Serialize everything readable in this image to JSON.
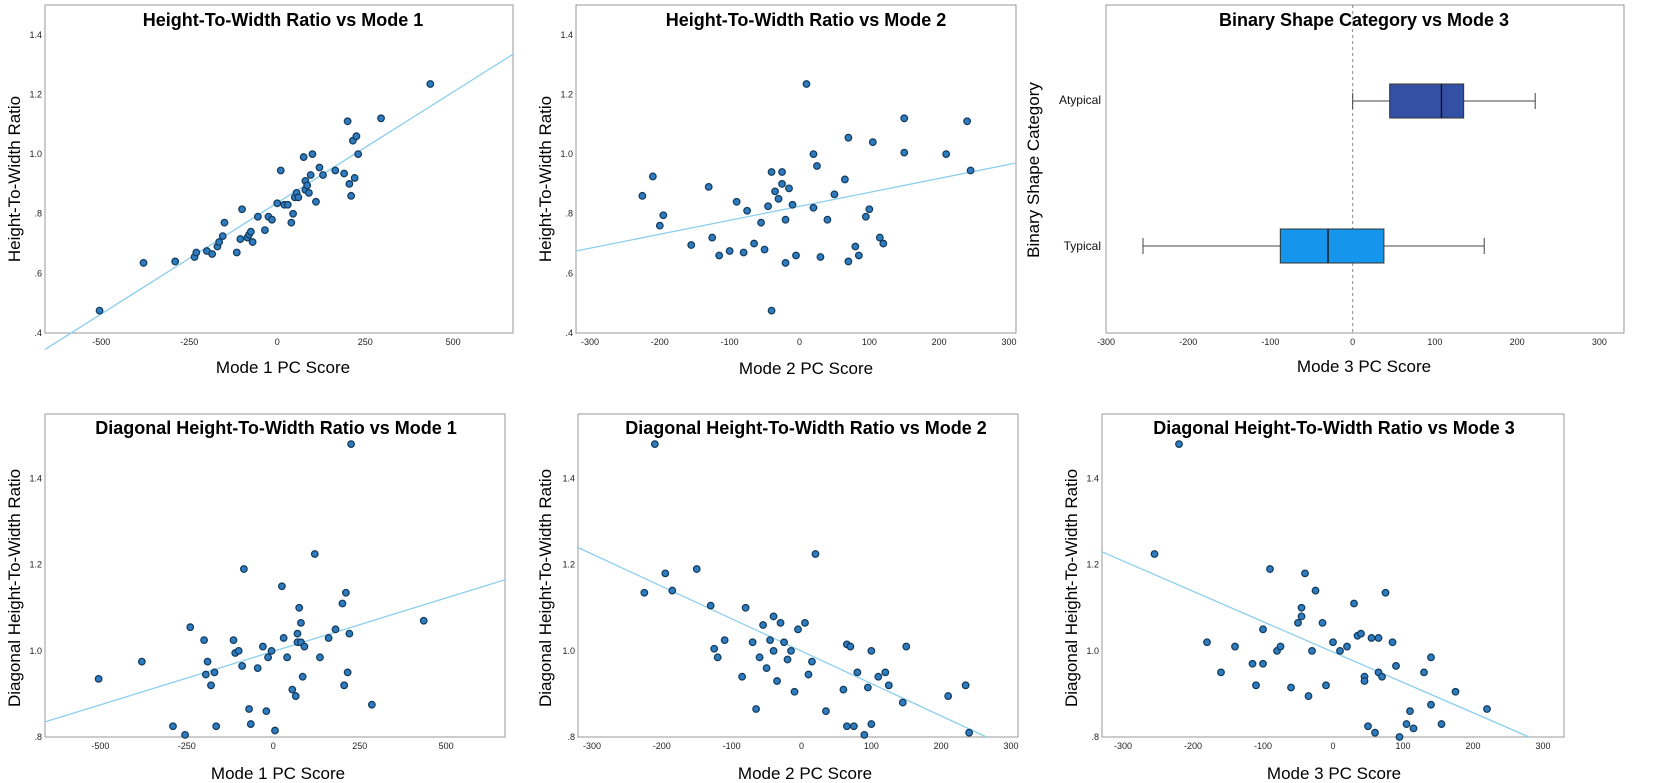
{
  "colors": {
    "point_fill": "#2e7bbf",
    "point_edge": "#123a5a",
    "fit_line": "#8ccfee",
    "box_atypical": "#3450a4",
    "box_typical": "#1595ec",
    "frame": "#9a9a9a"
  },
  "chart_data": [
    {
      "type": "scatter",
      "title": "Height-To-Width Ratio vs Mode 1",
      "xlabel": "Mode 1 PC Score",
      "ylabel": "Height-To-Width Ratio",
      "xlim": [
        -660,
        670
      ],
      "ylim": [
        0.4,
        1.5
      ],
      "xticks": [
        -500,
        -250,
        0,
        250,
        500
      ],
      "xtick_labels": [
        "-500",
        "-250",
        "0",
        "250",
        "500"
      ],
      "yticks": [
        0.4,
        0.6,
        0.8,
        1.0,
        1.2,
        1.4
      ],
      "ytick_labels": [
        ".4",
        ".6",
        ".8",
        "1.0",
        "1.2",
        "1.4"
      ],
      "fit_line": {
        "x": [
          -660,
          670
        ],
        "y": [
          0.345,
          1.335
        ]
      },
      "points": [
        [
          -505,
          0.475
        ],
        [
          -380,
          0.635
        ],
        [
          -290,
          0.64
        ],
        [
          -235,
          0.655
        ],
        [
          -230,
          0.67
        ],
        [
          -200,
          0.675
        ],
        [
          -185,
          0.665
        ],
        [
          -170,
          0.69
        ],
        [
          -165,
          0.705
        ],
        [
          -155,
          0.725
        ],
        [
          -150,
          0.77
        ],
        [
          -115,
          0.67
        ],
        [
          -105,
          0.715
        ],
        [
          -100,
          0.815
        ],
        [
          -85,
          0.72
        ],
        [
          -80,
          0.73
        ],
        [
          -75,
          0.74
        ],
        [
          -70,
          0.705
        ],
        [
          -55,
          0.79
        ],
        [
          -35,
          0.745
        ],
        [
          -25,
          0.79
        ],
        [
          -15,
          0.78
        ],
        [
          0,
          0.835
        ],
        [
          10,
          0.945
        ],
        [
          20,
          0.83
        ],
        [
          30,
          0.83
        ],
        [
          40,
          0.77
        ],
        [
          45,
          0.8
        ],
        [
          50,
          0.855
        ],
        [
          55,
          0.87
        ],
        [
          60,
          0.855
        ],
        [
          75,
          0.99
        ],
        [
          80,
          0.88
        ],
        [
          80,
          0.91
        ],
        [
          85,
          0.895
        ],
        [
          90,
          0.87
        ],
        [
          95,
          0.93
        ],
        [
          100,
          1.0
        ],
        [
          110,
          0.84
        ],
        [
          120,
          0.955
        ],
        [
          130,
          0.93
        ],
        [
          165,
          0.945
        ],
        [
          190,
          0.935
        ],
        [
          200,
          1.11
        ],
        [
          205,
          0.9
        ],
        [
          210,
          0.86
        ],
        [
          215,
          1.045
        ],
        [
          220,
          0.92
        ],
        [
          225,
          1.06
        ],
        [
          230,
          1.0
        ],
        [
          295,
          1.12
        ],
        [
          435,
          1.235
        ]
      ]
    },
    {
      "type": "scatter",
      "title": "Height-To-Width Ratio vs Mode 2",
      "xlabel": "Mode 2 PC Score",
      "ylabel": "Height-To-Width Ratio",
      "xlim": [
        -320,
        310
      ],
      "ylim": [
        0.4,
        1.5
      ],
      "xticks": [
        -300,
        -200,
        -100,
        0,
        100,
        200,
        300
      ],
      "xtick_labels": [
        "-300",
        "-200",
        "-100",
        "0",
        "100",
        "200",
        "300"
      ],
      "yticks": [
        0.4,
        0.6,
        0.8,
        1.0,
        1.2,
        1.4
      ],
      "ytick_labels": [
        ".4",
        ".6",
        ".8",
        "1.0",
        "1.2",
        "1.4"
      ],
      "fit_line": {
        "x": [
          -320,
          310
        ],
        "y": [
          0.675,
          0.97
        ]
      },
      "points": [
        [
          -225,
          0.86
        ],
        [
          -210,
          0.925
        ],
        [
          -200,
          0.76
        ],
        [
          -195,
          0.795
        ],
        [
          -155,
          0.695
        ],
        [
          -130,
          0.89
        ],
        [
          -125,
          0.72
        ],
        [
          -115,
          0.66
        ],
        [
          -100,
          0.675
        ],
        [
          -90,
          0.84
        ],
        [
          -80,
          0.67
        ],
        [
          -75,
          0.81
        ],
        [
          -65,
          0.7
        ],
        [
          -55,
          0.77
        ],
        [
          -50,
          0.68
        ],
        [
          -45,
          0.825
        ],
        [
          -40,
          0.94
        ],
        [
          -40,
          0.475
        ],
        [
          -35,
          0.875
        ],
        [
          -30,
          0.85
        ],
        [
          -25,
          0.9
        ],
        [
          -25,
          0.94
        ],
        [
          -20,
          0.78
        ],
        [
          -20,
          0.635
        ],
        [
          -15,
          0.885
        ],
        [
          -10,
          0.83
        ],
        [
          -5,
          0.66
        ],
        [
          10,
          1.235
        ],
        [
          20,
          1.0
        ],
        [
          20,
          0.82
        ],
        [
          25,
          0.96
        ],
        [
          30,
          0.655
        ],
        [
          40,
          0.78
        ],
        [
          50,
          0.865
        ],
        [
          65,
          0.915
        ],
        [
          70,
          1.055
        ],
        [
          70,
          0.64
        ],
        [
          80,
          0.69
        ],
        [
          85,
          0.66
        ],
        [
          95,
          0.79
        ],
        [
          100,
          0.815
        ],
        [
          105,
          1.04
        ],
        [
          115,
          0.72
        ],
        [
          120,
          0.7
        ],
        [
          150,
          1.12
        ],
        [
          150,
          1.005
        ],
        [
          210,
          1.0
        ],
        [
          240,
          1.11
        ],
        [
          245,
          0.945
        ]
      ]
    },
    {
      "type": "box",
      "title": "Binary Shape Category vs Mode 3",
      "xlabel": "Mode 3 PC Score",
      "ylabel": "Binary Shape Category",
      "xlim": [
        -300,
        330
      ],
      "xticks": [
        -300,
        -200,
        -100,
        0,
        100,
        200,
        300
      ],
      "xtick_labels": [
        "-300",
        "-200",
        "-100",
        "0",
        "100",
        "200",
        "300"
      ],
      "reference_line_x": 0,
      "categories": [
        "Atypical",
        "Typical"
      ],
      "boxes": [
        {
          "category": "Atypical",
          "whisker_low": 0,
          "q1": 45,
          "median": 108,
          "q3": 135,
          "whisker_high": 222
        },
        {
          "category": "Typical",
          "whisker_low": -255,
          "q1": -88,
          "median": -30,
          "q3": 38,
          "whisker_high": 160
        }
      ]
    },
    {
      "type": "scatter",
      "title": "Diagonal Height-To-Width Ratio vs Mode 1",
      "xlabel": "Mode 1 PC Score",
      "ylabel": "Diagonal Height-To-Width Ratio",
      "xlim": [
        -660,
        670
      ],
      "ylim": [
        0.8,
        1.55
      ],
      "xticks": [
        -500,
        -250,
        0,
        250,
        500
      ],
      "xtick_labels": [
        "-500",
        "-250",
        "0",
        "250",
        "500"
      ],
      "yticks": [
        0.8,
        1.0,
        1.2,
        1.4
      ],
      "ytick_labels": [
        ".8",
        "1.0",
        "1.2",
        "1.4"
      ],
      "fit_line": {
        "x": [
          -660,
          670
        ],
        "y": [
          0.835,
          1.165
        ]
      },
      "points": [
        [
          -505,
          0.935
        ],
        [
          -380,
          0.975
        ],
        [
          -290,
          0.825
        ],
        [
          -255,
          0.805
        ],
        [
          -240,
          1.055
        ],
        [
          -200,
          1.025
        ],
        [
          -195,
          0.945
        ],
        [
          -190,
          0.975
        ],
        [
          -180,
          0.92
        ],
        [
          -170,
          0.95
        ],
        [
          -165,
          0.825
        ],
        [
          -115,
          1.025
        ],
        [
          -110,
          0.995
        ],
        [
          -100,
          1.0
        ],
        [
          -90,
          0.965
        ],
        [
          -85,
          1.19
        ],
        [
          -70,
          0.865
        ],
        [
          -65,
          0.83
        ],
        [
          -45,
          0.96
        ],
        [
          -30,
          1.01
        ],
        [
          -20,
          0.86
        ],
        [
          -15,
          0.985
        ],
        [
          -5,
          1.0
        ],
        [
          5,
          0.815
        ],
        [
          25,
          1.15
        ],
        [
          30,
          1.03
        ],
        [
          40,
          0.985
        ],
        [
          55,
          0.91
        ],
        [
          65,
          0.895
        ],
        [
          70,
          1.02
        ],
        [
          70,
          1.04
        ],
        [
          75,
          1.1
        ],
        [
          80,
          1.065
        ],
        [
          80,
          1.02
        ],
        [
          85,
          0.94
        ],
        [
          90,
          1.01
        ],
        [
          120,
          1.225
        ],
        [
          135,
          0.985
        ],
        [
          160,
          1.03
        ],
        [
          180,
          1.05
        ],
        [
          200,
          1.11
        ],
        [
          205,
          0.92
        ],
        [
          210,
          1.135
        ],
        [
          215,
          0.95
        ],
        [
          220,
          1.04
        ],
        [
          225,
          1.48
        ],
        [
          285,
          0.875
        ],
        [
          435,
          1.07
        ]
      ]
    },
    {
      "type": "scatter",
      "title": "Diagonal Height-To-Width Ratio vs Mode 2",
      "xlabel": "Mode 2 PC Score",
      "ylabel": "Diagonal Height-To-Width Ratio",
      "xlim": [
        -320,
        310
      ],
      "ylim": [
        0.8,
        1.55
      ],
      "xticks": [
        -300,
        -200,
        -100,
        0,
        100,
        200,
        300
      ],
      "xtick_labels": [
        "-300",
        "-200",
        "-100",
        "0",
        "100",
        "200",
        "300"
      ],
      "yticks": [
        0.8,
        1.0,
        1.2,
        1.4
      ],
      "ytick_labels": [
        ".8",
        "1.0",
        "1.2",
        "1.4"
      ],
      "fit_line": {
        "x": [
          -320,
          265
        ],
        "y": [
          1.24,
          0.8
        ]
      },
      "points": [
        [
          -225,
          1.135
        ],
        [
          -210,
          1.48
        ],
        [
          -195,
          1.18
        ],
        [
          -185,
          1.14
        ],
        [
          -150,
          1.19
        ],
        [
          -130,
          1.105
        ],
        [
          -125,
          1.005
        ],
        [
          -120,
          0.985
        ],
        [
          -110,
          1.025
        ],
        [
          -85,
          0.94
        ],
        [
          -80,
          1.1
        ],
        [
          -70,
          1.02
        ],
        [
          -65,
          0.865
        ],
        [
          -60,
          0.985
        ],
        [
          -55,
          1.06
        ],
        [
          -50,
          0.96
        ],
        [
          -45,
          1.025
        ],
        [
          -40,
          1.08
        ],
        [
          -40,
          1.0
        ],
        [
          -35,
          0.93
        ],
        [
          -30,
          1.065
        ],
        [
          -25,
          1.02
        ],
        [
          -20,
          0.98
        ],
        [
          -15,
          1.0
        ],
        [
          -10,
          0.905
        ],
        [
          -5,
          1.05
        ],
        [
          5,
          1.065
        ],
        [
          10,
          0.945
        ],
        [
          15,
          0.975
        ],
        [
          20,
          1.225
        ],
        [
          35,
          0.86
        ],
        [
          60,
          0.91
        ],
        [
          65,
          1.015
        ],
        [
          65,
          0.825
        ],
        [
          70,
          1.01
        ],
        [
          75,
          0.825
        ],
        [
          80,
          0.95
        ],
        [
          90,
          0.805
        ],
        [
          95,
          0.915
        ],
        [
          100,
          1.0
        ],
        [
          100,
          0.83
        ],
        [
          110,
          0.94
        ],
        [
          120,
          0.95
        ],
        [
          125,
          0.92
        ],
        [
          145,
          0.88
        ],
        [
          150,
          1.01
        ],
        [
          210,
          0.895
        ],
        [
          235,
          0.92
        ],
        [
          240,
          0.81
        ]
      ]
    },
    {
      "type": "scatter",
      "title": "Diagonal Height-To-Width Ratio vs Mode 3",
      "xlabel": "Mode 3 PC Score",
      "ylabel": "Diagonal Height-To-Width Ratio",
      "xlim": [
        -330,
        330
      ],
      "ylim": [
        0.8,
        1.55
      ],
      "xticks": [
        -300,
        -200,
        -100,
        0,
        100,
        200,
        300
      ],
      "xtick_labels": [
        "-300",
        "-200",
        "-100",
        "0",
        "100",
        "200",
        "300"
      ],
      "yticks": [
        0.8,
        1.0,
        1.2,
        1.4
      ],
      "ytick_labels": [
        ".8",
        "1.0",
        "1.2",
        "1.4"
      ],
      "fit_line": {
        "x": [
          -330,
          280
        ],
        "y": [
          1.23,
          0.8
        ]
      },
      "points": [
        [
          -255,
          1.225
        ],
        [
          -220,
          1.48
        ],
        [
          -180,
          1.02
        ],
        [
          -160,
          0.95
        ],
        [
          -140,
          1.01
        ],
        [
          -115,
          0.97
        ],
        [
          -110,
          0.92
        ],
        [
          -100,
          0.97
        ],
        [
          -100,
          1.05
        ],
        [
          -90,
          1.19
        ],
        [
          -80,
          1.0
        ],
        [
          -75,
          1.01
        ],
        [
          -60,
          0.915
        ],
        [
          -50,
          1.065
        ],
        [
          -45,
          1.08
        ],
        [
          -45,
          1.1
        ],
        [
          -40,
          1.18
        ],
        [
          -35,
          0.895
        ],
        [
          -30,
          1.0
        ],
        [
          -25,
          1.14
        ],
        [
          -15,
          1.065
        ],
        [
          -10,
          0.92
        ],
        [
          0,
          1.02
        ],
        [
          10,
          1.0
        ],
        [
          20,
          1.01
        ],
        [
          30,
          1.11
        ],
        [
          35,
          1.035
        ],
        [
          40,
          1.04
        ],
        [
          45,
          0.94
        ],
        [
          45,
          0.93
        ],
        [
          50,
          0.825
        ],
        [
          55,
          1.03
        ],
        [
          60,
          0.81
        ],
        [
          65,
          0.95
        ],
        [
          65,
          1.03
        ],
        [
          70,
          0.94
        ],
        [
          75,
          1.135
        ],
        [
          85,
          1.02
        ],
        [
          90,
          0.965
        ],
        [
          95,
          0.8
        ],
        [
          105,
          0.83
        ],
        [
          110,
          0.86
        ],
        [
          115,
          0.82
        ],
        [
          130,
          0.95
        ],
        [
          140,
          0.985
        ],
        [
          140,
          0.875
        ],
        [
          155,
          0.83
        ],
        [
          175,
          0.905
        ],
        [
          220,
          0.865
        ]
      ]
    }
  ]
}
